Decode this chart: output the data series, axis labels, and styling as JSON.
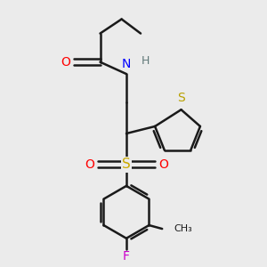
{
  "bg_color": "#ebebeb",
  "bond_color": "#1a1a1a",
  "bond_width": 1.8,
  "figsize": [
    3.0,
    3.0
  ],
  "dpi": 100,
  "xlim": [
    0,
    10
  ],
  "ylim": [
    -1,
    10
  ]
}
